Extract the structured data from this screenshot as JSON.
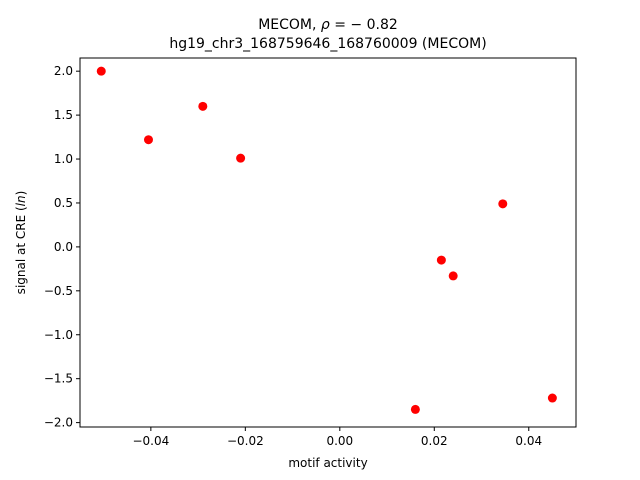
{
  "chart_data": {
    "type": "scatter",
    "title_line1_prefix": "MECOM, ",
    "title_line1_rho": "ρ",
    "title_line1_suffix": " = − 0.82",
    "title_line2": "hg19_chr3_168759646_168760009 (MECOM)",
    "xlabel": "motif activity",
    "ylabel_prefix": "signal at CRE (",
    "ylabel_italic": "ln",
    "ylabel_suffix": ")",
    "xlim": [
      -0.055,
      0.05
    ],
    "ylim": [
      -2.05,
      2.15
    ],
    "x_ticks": [
      -0.04,
      -0.02,
      0.0,
      0.02,
      0.04
    ],
    "x_tick_labels": [
      "−0.04",
      "−0.02",
      "0.00",
      "0.02",
      "0.04"
    ],
    "y_ticks": [
      -2.0,
      -1.5,
      -1.0,
      -0.5,
      0.0,
      0.5,
      1.0,
      1.5,
      2.0
    ],
    "y_tick_labels": [
      "−2.0",
      "−1.5",
      "−1.0",
      "−0.5",
      "0.0",
      "0.5",
      "1.0",
      "1.5",
      "2.0"
    ],
    "marker_color": "#ff0000",
    "grid": false,
    "points": [
      {
        "x": -0.0505,
        "y": 2.0
      },
      {
        "x": -0.0405,
        "y": 1.22
      },
      {
        "x": -0.029,
        "y": 1.6
      },
      {
        "x": -0.021,
        "y": 1.01
      },
      {
        "x": 0.016,
        "y": -1.85
      },
      {
        "x": 0.0215,
        "y": -0.15
      },
      {
        "x": 0.024,
        "y": -0.33
      },
      {
        "x": 0.0345,
        "y": 0.49
      },
      {
        "x": 0.045,
        "y": -1.72
      }
    ]
  }
}
